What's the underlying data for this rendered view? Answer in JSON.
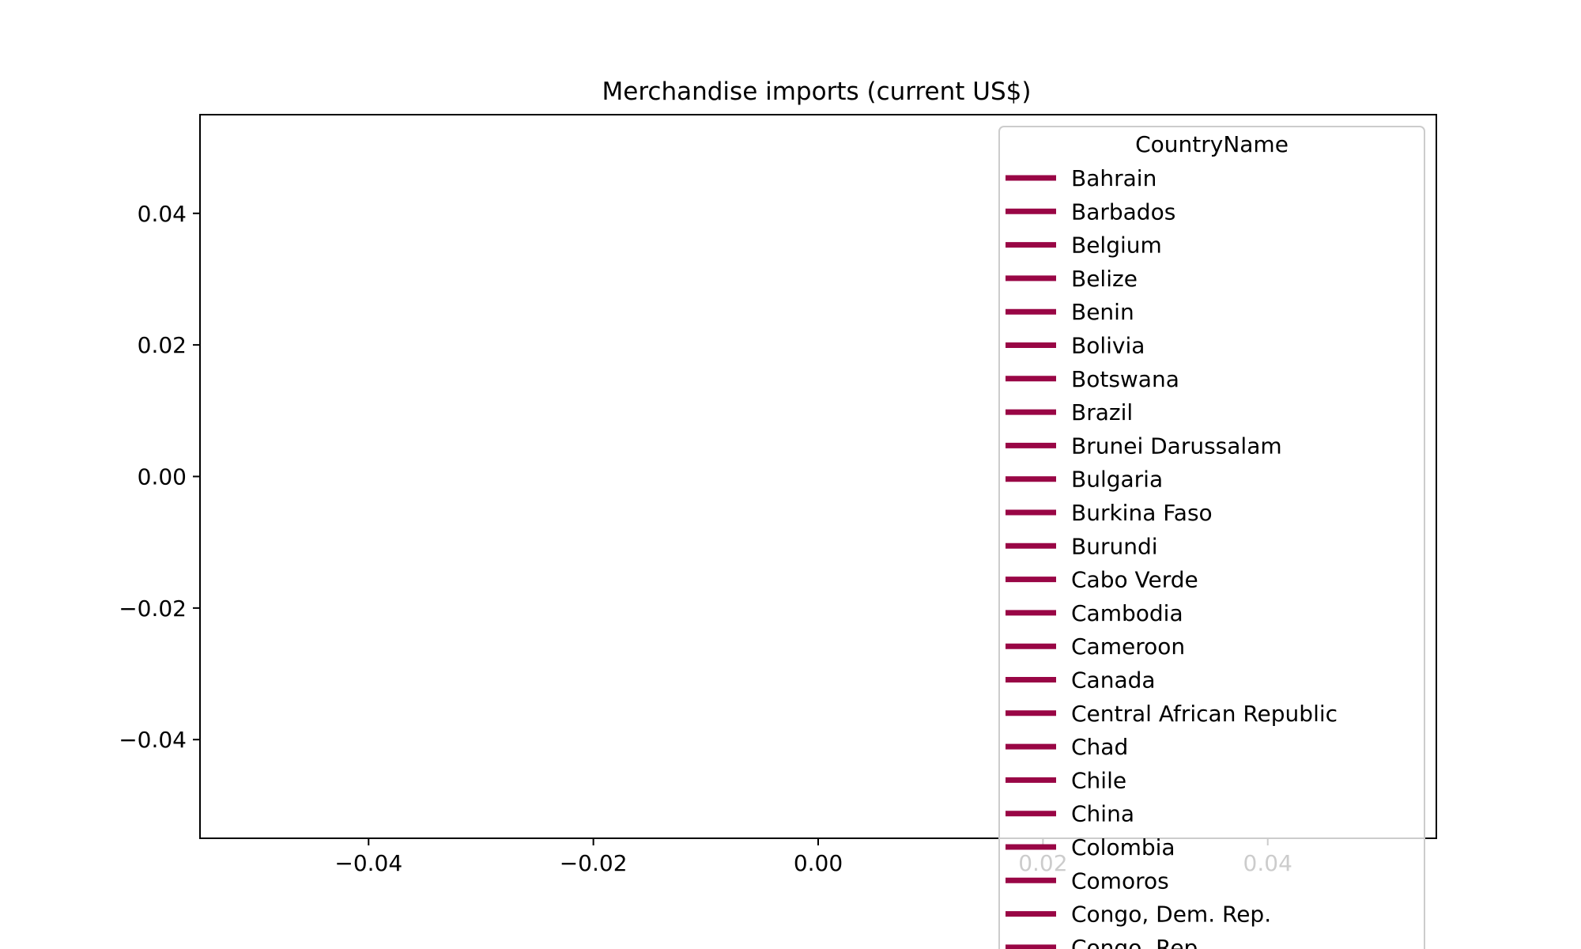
{
  "chart_data": {
    "type": "line",
    "title": "Merchandise imports (current US$)",
    "xlabel": "",
    "ylabel": "",
    "xlim": [
      -0.055,
      0.055
    ],
    "ylim": [
      -0.055,
      0.055
    ],
    "x_ticks": [
      "−0.04",
      "−0.02",
      "0.00",
      "0.02",
      "0.04"
    ],
    "x_tick_values": [
      -0.04,
      -0.02,
      0.0,
      0.02,
      0.04
    ],
    "y_ticks": [
      "0.04",
      "0.02",
      "0.00",
      "−0.02",
      "−0.04"
    ],
    "y_tick_values": [
      0.04,
      0.02,
      0.0,
      -0.02,
      -0.04
    ],
    "grid": false,
    "legend_position": "top-right",
    "legend_title": "CountryName",
    "series_color": "#990645",
    "series": [
      {
        "name": "Bahrain",
        "values": []
      },
      {
        "name": "Barbados",
        "values": []
      },
      {
        "name": "Belgium",
        "values": []
      },
      {
        "name": "Belize",
        "values": []
      },
      {
        "name": "Benin",
        "values": []
      },
      {
        "name": "Bolivia",
        "values": []
      },
      {
        "name": "Botswana",
        "values": []
      },
      {
        "name": "Brazil",
        "values": []
      },
      {
        "name": "Brunei Darussalam",
        "values": []
      },
      {
        "name": "Bulgaria",
        "values": []
      },
      {
        "name": "Burkina Faso",
        "values": []
      },
      {
        "name": "Burundi",
        "values": []
      },
      {
        "name": "Cabo Verde",
        "values": []
      },
      {
        "name": "Cambodia",
        "values": []
      },
      {
        "name": "Cameroon",
        "values": []
      },
      {
        "name": "Canada",
        "values": []
      },
      {
        "name": "Central African Republic",
        "values": []
      },
      {
        "name": "Chad",
        "values": []
      },
      {
        "name": "Chile",
        "values": []
      },
      {
        "name": "China",
        "values": []
      },
      {
        "name": "Colombia",
        "values": []
      },
      {
        "name": "Comoros",
        "values": []
      },
      {
        "name": "Congo, Dem. Rep.",
        "values": []
      },
      {
        "name": "Congo, Rep.",
        "values": []
      }
    ]
  }
}
